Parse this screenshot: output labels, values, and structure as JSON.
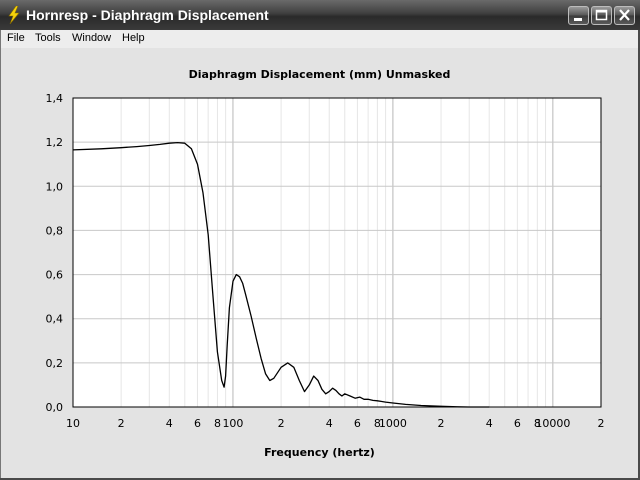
{
  "window": {
    "title": "Hornresp - Diaphragm Displacement",
    "icon": "lightning-bolt-icon"
  },
  "menu": [
    "File",
    "Tools",
    "Window",
    "Help"
  ],
  "chart_data": {
    "type": "line",
    "title": "Diaphragm Displacement (mm)   Unmasked",
    "xlabel": "Frequency (hertz)",
    "ylabel": "",
    "xscale": "log",
    "xlim": [
      10,
      20000
    ],
    "ylim": [
      0,
      1.4
    ],
    "yticks": [
      "0,0",
      "0,2",
      "0,4",
      "0,6",
      "0,8",
      "1,0",
      "1,2",
      "1,4"
    ],
    "xticks": [
      {
        "v": 10,
        "t": "10"
      },
      {
        "v": 20,
        "t": "2"
      },
      {
        "v": 40,
        "t": "4"
      },
      {
        "v": 60,
        "t": "6"
      },
      {
        "v": 80,
        "t": "8"
      },
      {
        "v": 100,
        "t": "100"
      },
      {
        "v": 200,
        "t": "2"
      },
      {
        "v": 400,
        "t": "4"
      },
      {
        "v": 600,
        "t": "6"
      },
      {
        "v": 800,
        "t": "8"
      },
      {
        "v": 1000,
        "t": "1000"
      },
      {
        "v": 2000,
        "t": "2"
      },
      {
        "v": 4000,
        "t": "4"
      },
      {
        "v": 6000,
        "t": "6"
      },
      {
        "v": 8000,
        "t": "8"
      },
      {
        "v": 10000,
        "t": "10000"
      },
      {
        "v": 20000,
        "t": "2"
      }
    ],
    "grid": true,
    "series": [
      {
        "color": "#000000",
        "x": [
          10,
          15,
          20,
          25,
          30,
          35,
          40,
          45,
          50,
          55,
          60,
          65,
          70,
          75,
          80,
          85,
          88,
          90,
          92,
          95,
          100,
          105,
          110,
          115,
          120,
          130,
          140,
          150,
          160,
          170,
          180,
          200,
          220,
          240,
          260,
          280,
          300,
          320,
          340,
          360,
          380,
          400,
          420,
          440,
          460,
          480,
          500,
          540,
          580,
          620,
          660,
          700,
          750,
          800,
          900,
          1000,
          1200,
          1500,
          2000,
          2500,
          3000,
          4000
        ],
        "y": [
          1.165,
          1.17,
          1.175,
          1.18,
          1.185,
          1.19,
          1.195,
          1.198,
          1.195,
          1.17,
          1.1,
          0.97,
          0.78,
          0.5,
          0.25,
          0.12,
          0.09,
          0.14,
          0.28,
          0.45,
          0.57,
          0.6,
          0.59,
          0.56,
          0.51,
          0.41,
          0.31,
          0.22,
          0.15,
          0.12,
          0.13,
          0.18,
          0.2,
          0.18,
          0.12,
          0.07,
          0.1,
          0.14,
          0.12,
          0.08,
          0.06,
          0.07,
          0.085,
          0.075,
          0.06,
          0.05,
          0.06,
          0.05,
          0.04,
          0.045,
          0.035,
          0.035,
          0.03,
          0.028,
          0.022,
          0.018,
          0.012,
          0.007,
          0.003,
          0.001,
          0.0,
          0.0
        ]
      }
    ]
  }
}
